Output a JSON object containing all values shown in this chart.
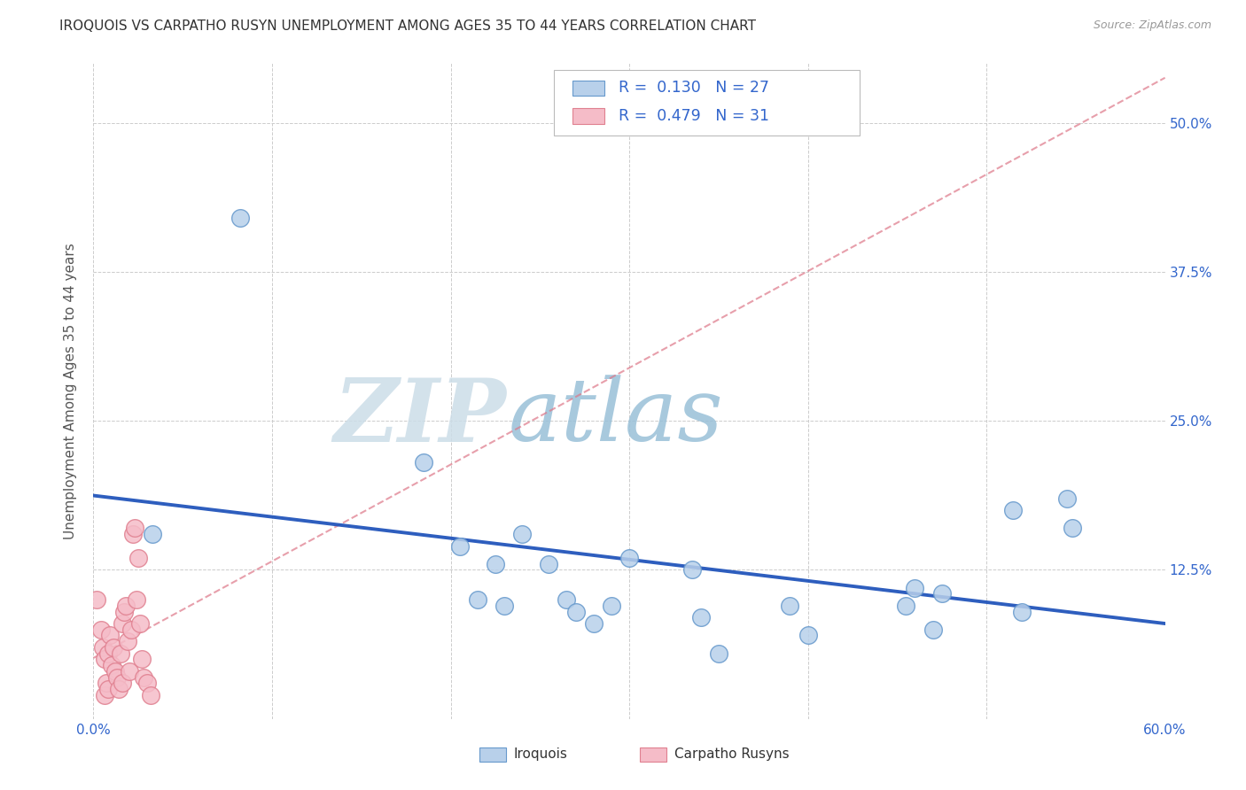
{
  "title": "IROQUOIS VS CARPATHO RUSYN UNEMPLOYMENT AMONG AGES 35 TO 44 YEARS CORRELATION CHART",
  "source": "Source: ZipAtlas.com",
  "ylabel": "Unemployment Among Ages 35 to 44 years",
  "xlim": [
    0.0,
    0.6
  ],
  "ylim": [
    0.0,
    0.55
  ],
  "xtick_positions": [
    0.0,
    0.1,
    0.2,
    0.3,
    0.4,
    0.5,
    0.6
  ],
  "xticklabels": [
    "0.0%",
    "",
    "",
    "",
    "",
    "",
    "60.0%"
  ],
  "ytick_positions": [
    0.0,
    0.125,
    0.25,
    0.375,
    0.5
  ],
  "yticklabels_right": [
    "",
    "12.5%",
    "25.0%",
    "37.5%",
    "50.0%"
  ],
  "iroquois_R": 0.13,
  "iroquois_N": 27,
  "carpatho_R": 0.479,
  "carpatho_N": 31,
  "iroquois_fill": "#b8d0ea",
  "iroquois_edge": "#6699cc",
  "carpatho_fill": "#f5bcc8",
  "carpatho_edge": "#e08090",
  "reg_iroquois_color": "#2255bb",
  "reg_carpatho_color": "#dd7788",
  "grid_color": "#cccccc",
  "label_color": "#3366cc",
  "title_color": "#333333",
  "source_color": "#999999",
  "iroquois_x": [
    0.033,
    0.082,
    0.185,
    0.205,
    0.215,
    0.225,
    0.23,
    0.24,
    0.255,
    0.265,
    0.27,
    0.28,
    0.29,
    0.3,
    0.335,
    0.34,
    0.35,
    0.39,
    0.4,
    0.455,
    0.46,
    0.47,
    0.475,
    0.515,
    0.52,
    0.545,
    0.548
  ],
  "iroquois_y": [
    0.155,
    0.42,
    0.215,
    0.145,
    0.1,
    0.13,
    0.095,
    0.155,
    0.13,
    0.1,
    0.09,
    0.08,
    0.095,
    0.135,
    0.125,
    0.085,
    0.055,
    0.095,
    0.07,
    0.095,
    0.11,
    0.075,
    0.105,
    0.175,
    0.09,
    0.185,
    0.16
  ],
  "carpatho_x": [
    0.002,
    0.004,
    0.005,
    0.006,
    0.006,
    0.007,
    0.008,
    0.008,
    0.009,
    0.01,
    0.011,
    0.012,
    0.013,
    0.014,
    0.015,
    0.016,
    0.016,
    0.017,
    0.018,
    0.019,
    0.02,
    0.021,
    0.022,
    0.023,
    0.024,
    0.025,
    0.026,
    0.027,
    0.028,
    0.03,
    0.032
  ],
  "carpatho_y": [
    0.1,
    0.075,
    0.06,
    0.05,
    0.02,
    0.03,
    0.025,
    0.055,
    0.07,
    0.045,
    0.06,
    0.04,
    0.035,
    0.025,
    0.055,
    0.03,
    0.08,
    0.09,
    0.095,
    0.065,
    0.04,
    0.075,
    0.155,
    0.16,
    0.1,
    0.135,
    0.08,
    0.05,
    0.035,
    0.03,
    0.02
  ]
}
